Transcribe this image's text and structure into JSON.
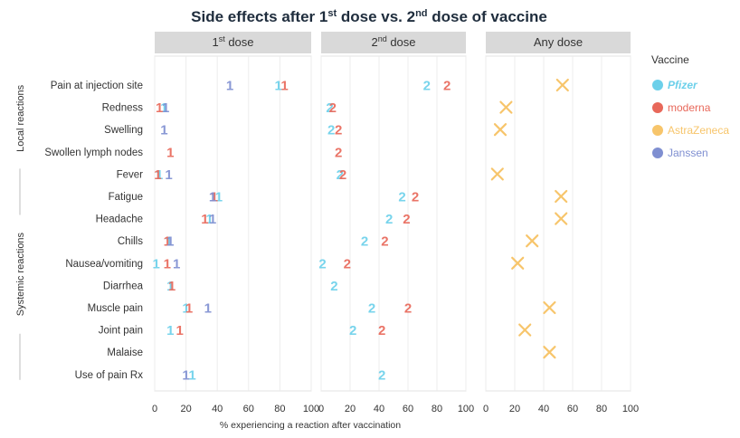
{
  "chart_data": {
    "type": "scatter",
    "title": "Side effects after 1st dose vs. 2nd dose of vaccine",
    "title_parts": {
      "a": "Side effects after 1",
      "sup1": "st",
      "b": " dose vs. 2",
      "sup2": "nd",
      "c": " dose of vaccine"
    },
    "xlabel": "% experiencing a reaction after vaccination",
    "xlim": [
      0,
      100
    ],
    "xticks": [
      "0",
      "20",
      "40",
      "60",
      "80",
      "100"
    ],
    "panels": [
      {
        "title": "1st dose",
        "title_main": "1",
        "title_sup": "st",
        "title_rest": " dose"
      },
      {
        "title": "2nd dose",
        "title_main": "2",
        "title_sup": "nd",
        "title_rest": " dose"
      },
      {
        "title": "Any dose",
        "title_main": "Any dose",
        "title_sup": "",
        "title_rest": ""
      }
    ],
    "categories": [
      "Pain at injection site",
      "Redness",
      "Swelling",
      "Swollen lymph nodes",
      "Fever",
      "Fatigue",
      "Headache",
      "Chills",
      "Nausea/vomiting",
      "Diarrhea",
      "Muscle pain",
      "Joint pain",
      "Malaise",
      "Use of pain Rx"
    ],
    "groups": [
      {
        "label": "Local reactions",
        "from": 0,
        "to": 3
      },
      {
        "label": "Systemic reactions",
        "from": 4,
        "to": 13
      }
    ],
    "legend": {
      "title": "Vaccine",
      "position": "right",
      "entries": [
        {
          "name": "Pfizer",
          "color": "#6cd0ea"
        },
        {
          "name": "moderna",
          "color": "#e8685a"
        },
        {
          "name": "AstraZeneca",
          "color": "#f7c56b"
        },
        {
          "name": "Janssen",
          "color": "#7f8fd1"
        }
      ]
    },
    "series": [
      {
        "name": "Pfizer",
        "panel": 0,
        "marker": "1",
        "color": "#6cd0ea",
        "values": [
          79,
          6,
          null,
          null,
          3,
          41,
          35,
          9,
          1,
          10,
          20,
          10,
          null,
          24
        ]
      },
      {
        "name": "moderna",
        "panel": 0,
        "marker": "1",
        "color": "#e8685a",
        "values": [
          83,
          3,
          null,
          10,
          2,
          38,
          32,
          8,
          8,
          11,
          22,
          16,
          null,
          null
        ]
      },
      {
        "name": "Janssen",
        "panel": 0,
        "marker": "1",
        "color": "#7f8fd1",
        "values": [
          48,
          7,
          6,
          null,
          9,
          37,
          37,
          10,
          14,
          null,
          34,
          null,
          null,
          20
        ]
      },
      {
        "name": "Pfizer",
        "panel": 1,
        "marker": "2",
        "color": "#6cd0ea",
        "values": [
          73,
          6,
          7,
          null,
          13,
          56,
          47,
          30,
          1,
          9,
          35,
          22,
          null,
          42
        ]
      },
      {
        "name": "moderna",
        "panel": 1,
        "marker": "2",
        "color": "#e8685a",
        "values": [
          87,
          8,
          12,
          12,
          15,
          65,
          59,
          44,
          18,
          null,
          60,
          42,
          null,
          null
        ]
      },
      {
        "name": "AstraZeneca",
        "panel": 2,
        "marker": "x",
        "color": "#f7c56b",
        "values": [
          53,
          14,
          10,
          null,
          8,
          52,
          52,
          32,
          22,
          null,
          44,
          27,
          44,
          null
        ]
      }
    ]
  }
}
